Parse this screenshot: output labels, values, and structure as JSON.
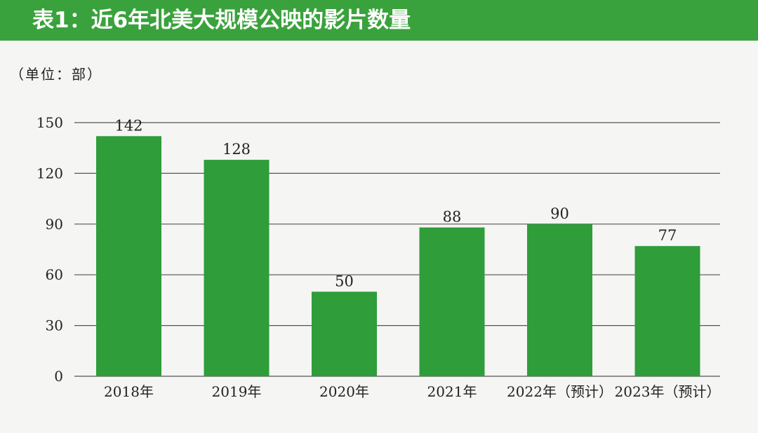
{
  "title": "表1：近6年北美大规模公映的影片数量",
  "unit": "（单位：部）",
  "colors": {
    "bar": "#2f9d3a",
    "title_bg": "#3aa23c",
    "grid": "#555555"
  },
  "chart_data": {
    "type": "bar",
    "title": "表1：近6年北美大规模公映的影片数量",
    "xlabel": "",
    "ylabel": "（单位：部）",
    "categories": [
      "2018年",
      "2019年",
      "2020年",
      "2021年",
      "2022年（预计）",
      "2023年（预计）"
    ],
    "values": [
      142,
      128,
      50,
      88,
      90,
      77
    ],
    "yticks": [
      0,
      30,
      60,
      90,
      120,
      150
    ],
    "ylim": [
      0,
      150
    ],
    "grid": true,
    "legend": "none"
  }
}
